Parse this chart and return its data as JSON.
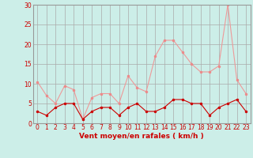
{
  "hours": [
    0,
    1,
    2,
    3,
    4,
    5,
    6,
    7,
    8,
    9,
    10,
    11,
    12,
    13,
    14,
    15,
    16,
    17,
    18,
    19,
    20,
    21,
    22,
    23
  ],
  "wind_avg": [
    3,
    2,
    4,
    5,
    5,
    1,
    3,
    4,
    4,
    2,
    4,
    5,
    3,
    3,
    4,
    6,
    6,
    5,
    5,
    2,
    4,
    5,
    6,
    3
  ],
  "wind_gust": [
    10.5,
    7,
    5,
    9.5,
    8.5,
    1,
    6.5,
    7.5,
    7.5,
    5,
    12,
    9,
    8,
    17,
    21,
    21,
    18,
    15,
    13,
    13,
    14.5,
    30,
    11,
    7.5
  ],
  "bg_color": "#cceee8",
  "grid_color": "#aaaaaa",
  "line_avg_color": "#cc0000",
  "line_gust_color": "#ee9999",
  "marker_color_avg": "#cc0000",
  "marker_color_gust": "#ee8888",
  "xlabel": "Vent moyen/en rafales ( km/h )",
  "ylim": [
    0,
    30
  ],
  "xlim": [
    -0.5,
    23.5
  ],
  "yticks": [
    0,
    5,
    10,
    15,
    20,
    25,
    30
  ],
  "xticks": [
    0,
    1,
    2,
    3,
    4,
    5,
    6,
    7,
    8,
    9,
    10,
    11,
    12,
    13,
    14,
    15,
    16,
    17,
    18,
    19,
    20,
    21,
    22,
    23
  ],
  "tick_fontsize": 5.5,
  "xlabel_fontsize": 6.5,
  "label_color": "#cc0000"
}
